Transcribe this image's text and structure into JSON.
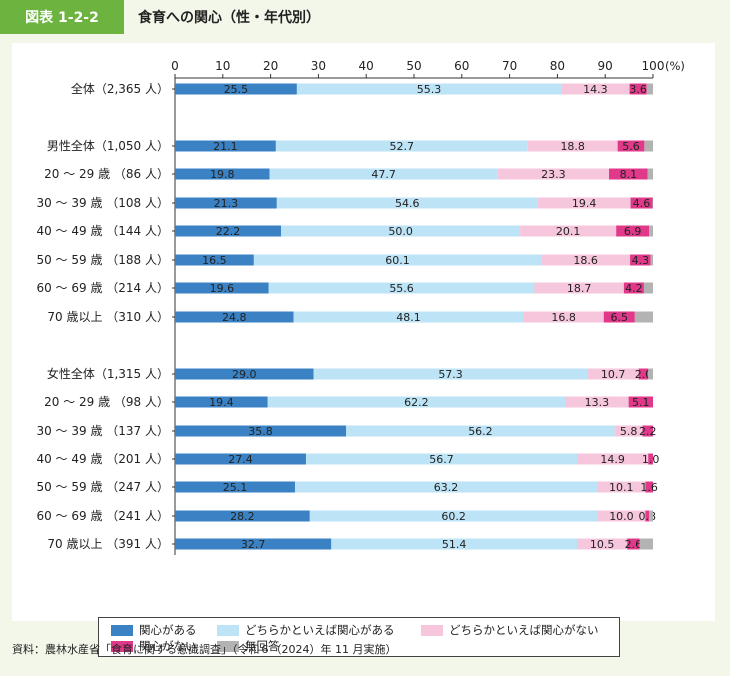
{
  "figure_label": "図表 1-2-2",
  "title": "食育への関心（性・年代別）",
  "source": "資料：農林水産省「食育に関する意識調査」（令和６（2024）年 11 月実施）",
  "chart_data": {
    "type": "bar",
    "orientation": "horizontal",
    "stacked": true,
    "title": "食育への関心（性・年代別）",
    "x_unit": "(%)",
    "xlim": [
      0,
      100
    ],
    "x_ticks": [
      "0",
      "10",
      "20",
      "30",
      "40",
      "50",
      "60",
      "70",
      "80",
      "90",
      "100"
    ],
    "grid": false,
    "legend_position": "bottom",
    "categories": [
      "全体（2,365 人）",
      "男性全体（1,050 人）",
      "20 ～ 29 歳 （86 人）",
      "30 ～ 39 歳 （108 人）",
      "40 ～ 49 歳 （144 人）",
      "50 ～ 59 歳 （188 人）",
      "60 ～ 69 歳 （214 人）",
      "70 歳以上 （310 人）",
      "女性全体（1,315 人）",
      "20 ～ 29 歳 （98 人）",
      "30 ～ 39 歳 （137 人）",
      "40 ～ 49 歳 （201 人）",
      "50 ～ 59 歳 （247 人）",
      "60 ～ 69 歳 （241 人）",
      "70 歳以上 （391 人）"
    ],
    "series": [
      {
        "name": "関心がある",
        "color": "#3a82c4",
        "values": [
          25.5,
          21.1,
          19.8,
          21.3,
          22.2,
          16.5,
          19.6,
          24.8,
          29.0,
          19.4,
          35.8,
          27.4,
          25.1,
          28.2,
          32.7
        ],
        "labels": [
          "25.5",
          "21.1",
          "19.8",
          "21.3",
          "22.2",
          "16.5",
          "19.6",
          "24.8",
          "29.0",
          "19.4",
          "35.8",
          "27.4",
          "25.1",
          "28.2",
          "32.7"
        ]
      },
      {
        "name": "どちらかといえば関心がある",
        "color": "#bde3f6",
        "values": [
          55.3,
          52.7,
          47.7,
          54.6,
          50.0,
          60.1,
          55.6,
          48.1,
          57.3,
          62.2,
          56.2,
          56.7,
          63.2,
          60.2,
          51.4
        ],
        "labels": [
          "55.3",
          "52.7",
          "47.7",
          "54.6",
          "50.0",
          "60.1",
          "55.6",
          "48.1",
          "57.3",
          "62.2",
          "56.2",
          "56.7",
          "63.2",
          "60.2",
          "51.4"
        ]
      },
      {
        "name": "どちらかといえば関心がない",
        "color": "#f6c6dd",
        "values": [
          14.3,
          18.8,
          23.3,
          19.4,
          20.1,
          18.6,
          18.7,
          16.8,
          10.7,
          13.3,
          5.8,
          14.9,
          10.1,
          10.0,
          10.5
        ],
        "labels": [
          "14.3",
          "18.8",
          "23.3",
          "19.4",
          "20.1",
          "18.6",
          "18.7",
          "16.8",
          "10.7",
          "13.3",
          "5.8",
          "14.9",
          "10.1",
          "10.0",
          "10.5"
        ]
      },
      {
        "name": "関心がない",
        "color": "#e0398a",
        "values": [
          3.6,
          5.6,
          8.1,
          4.6,
          6.9,
          4.3,
          4.2,
          6.5,
          2.0,
          5.1,
          2.2,
          1.0,
          1.6,
          0.8,
          2.6
        ],
        "labels": [
          "3.6",
          "5.6",
          "8.1",
          "4.6",
          "6.9",
          "4.3",
          "4.2",
          "6.5",
          "2.0",
          "5.1",
          "2.2",
          "1.0",
          "1.6",
          "0.8",
          "2.6"
        ]
      },
      {
        "name": "無回答",
        "color": "#b3b3b3",
        "values": [
          1.3,
          1.8,
          1.1,
          0.1,
          0.8,
          0.5,
          1.9,
          3.8,
          1.0,
          0.0,
          0.0,
          0.0,
          0.0,
          0.8,
          2.8
        ],
        "labels": [
          "",
          "",
          "",
          "",
          "",
          "",
          "",
          "",
          "",
          "",
          "",
          "",
          "",
          "",
          ""
        ]
      }
    ]
  }
}
